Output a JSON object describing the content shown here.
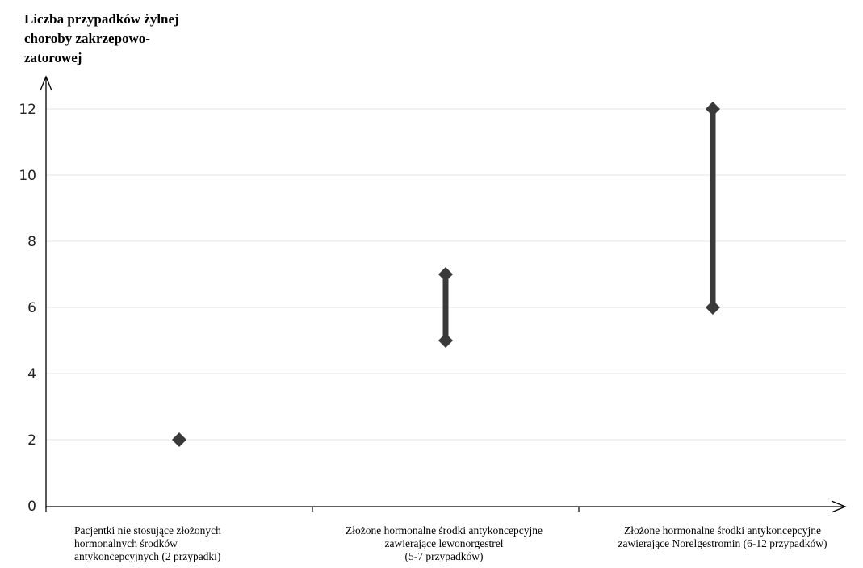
{
  "chart_data": {
    "type": "scatter",
    "ylabel": "Liczba przypadków żylnej\nchoroby zakrzepowo-\nzatorowej",
    "categories": [
      "Pacjentki nie stosujące złożonych\nhormonalnych środków\nantykoncepcyjnych (2 przypadki)",
      "Złożone hormonalne środki antykoncepcyjne\nzawierające lewonorgestrel\n(5-7 przypadków)",
      "Złożone hormonalne środki antykoncepcyjne\nzawierające Norelgestromin (6-12 przypadków)"
    ],
    "ranges": [
      {
        "low": 2,
        "high": 2
      },
      {
        "low": 5,
        "high": 7
      },
      {
        "low": 6,
        "high": 12
      }
    ],
    "ylim": [
      0,
      12
    ],
    "yticks": [
      0,
      2,
      4,
      6,
      8,
      10,
      12
    ],
    "grid": true,
    "colors": {
      "marker": "#3a3a3a",
      "grid": "#e6e6e6",
      "axis": "#000000"
    }
  }
}
